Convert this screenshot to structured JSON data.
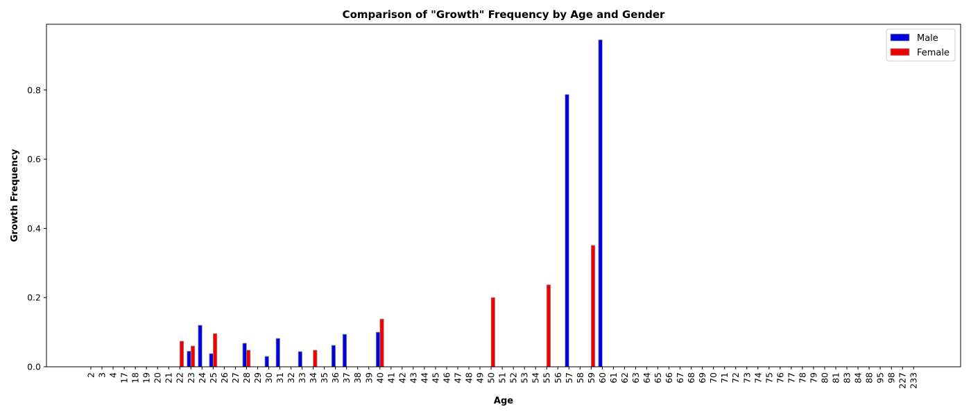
{
  "chart_data": {
    "type": "bar",
    "title": "Comparison of \"Growth\" Frequency by Age and Gender",
    "xlabel": "Age",
    "ylabel": "Growth Frequency",
    "ylim": [
      0,
      0.99
    ],
    "yticks": [
      "0.0",
      "0.2",
      "0.4",
      "0.6",
      "0.8"
    ],
    "legend_position": "top-right",
    "categories": [
      "2",
      "3",
      "4",
      "17",
      "18",
      "19",
      "20",
      "21",
      "22",
      "23",
      "24",
      "25",
      "26",
      "27",
      "28",
      "29",
      "30",
      "31",
      "32",
      "33",
      "34",
      "35",
      "36",
      "37",
      "38",
      "39",
      "40",
      "41",
      "42",
      "43",
      "44",
      "45",
      "46",
      "47",
      "48",
      "49",
      "50",
      "51",
      "52",
      "53",
      "54",
      "55",
      "56",
      "57",
      "58",
      "59",
      "60",
      "61",
      "62",
      "63",
      "64",
      "65",
      "66",
      "67",
      "68",
      "69",
      "70",
      "71",
      "72",
      "73",
      "74",
      "75",
      "76",
      "77",
      "78",
      "79",
      "80",
      "81",
      "83",
      "84",
      "88",
      "95",
      "98",
      "227",
      "233"
    ],
    "series": [
      {
        "name": "Male",
        "color": "#0000dd",
        "values": [
          0,
          0,
          0,
          0,
          0,
          0,
          0,
          0,
          0,
          0.045,
          0.12,
          0.038,
          0,
          0,
          0.068,
          0,
          0.03,
          0.082,
          0,
          0.044,
          0,
          0,
          0.062,
          0.094,
          0,
          0,
          0.1,
          0,
          0,
          0,
          0,
          0,
          0,
          0,
          0,
          0,
          0,
          0,
          0,
          0,
          0,
          0,
          0,
          0.787,
          0,
          0,
          0.945,
          0,
          0,
          0,
          0,
          0,
          0,
          0,
          0,
          0,
          0,
          0,
          0,
          0,
          0,
          0,
          0,
          0,
          0,
          0,
          0,
          0,
          0,
          0,
          0,
          0,
          0,
          0,
          0
        ]
      },
      {
        "name": "Female",
        "color": "#ee0000",
        "values": [
          0,
          0,
          0,
          0,
          0,
          0,
          0,
          0,
          0.074,
          0.06,
          0,
          0.096,
          0,
          0,
          0.048,
          0,
          0,
          0,
          0,
          0,
          0.048,
          0,
          0,
          0,
          0,
          0,
          0.138,
          0,
          0,
          0,
          0,
          0,
          0,
          0,
          0,
          0,
          0.2,
          0,
          0,
          0,
          0,
          0.237,
          0,
          0,
          0,
          0.351,
          0,
          0,
          0,
          0,
          0,
          0,
          0,
          0,
          0,
          0,
          0,
          0,
          0,
          0,
          0,
          0,
          0,
          0,
          0,
          0,
          0,
          0,
          0,
          0,
          0,
          0,
          0,
          0,
          0
        ]
      }
    ]
  }
}
